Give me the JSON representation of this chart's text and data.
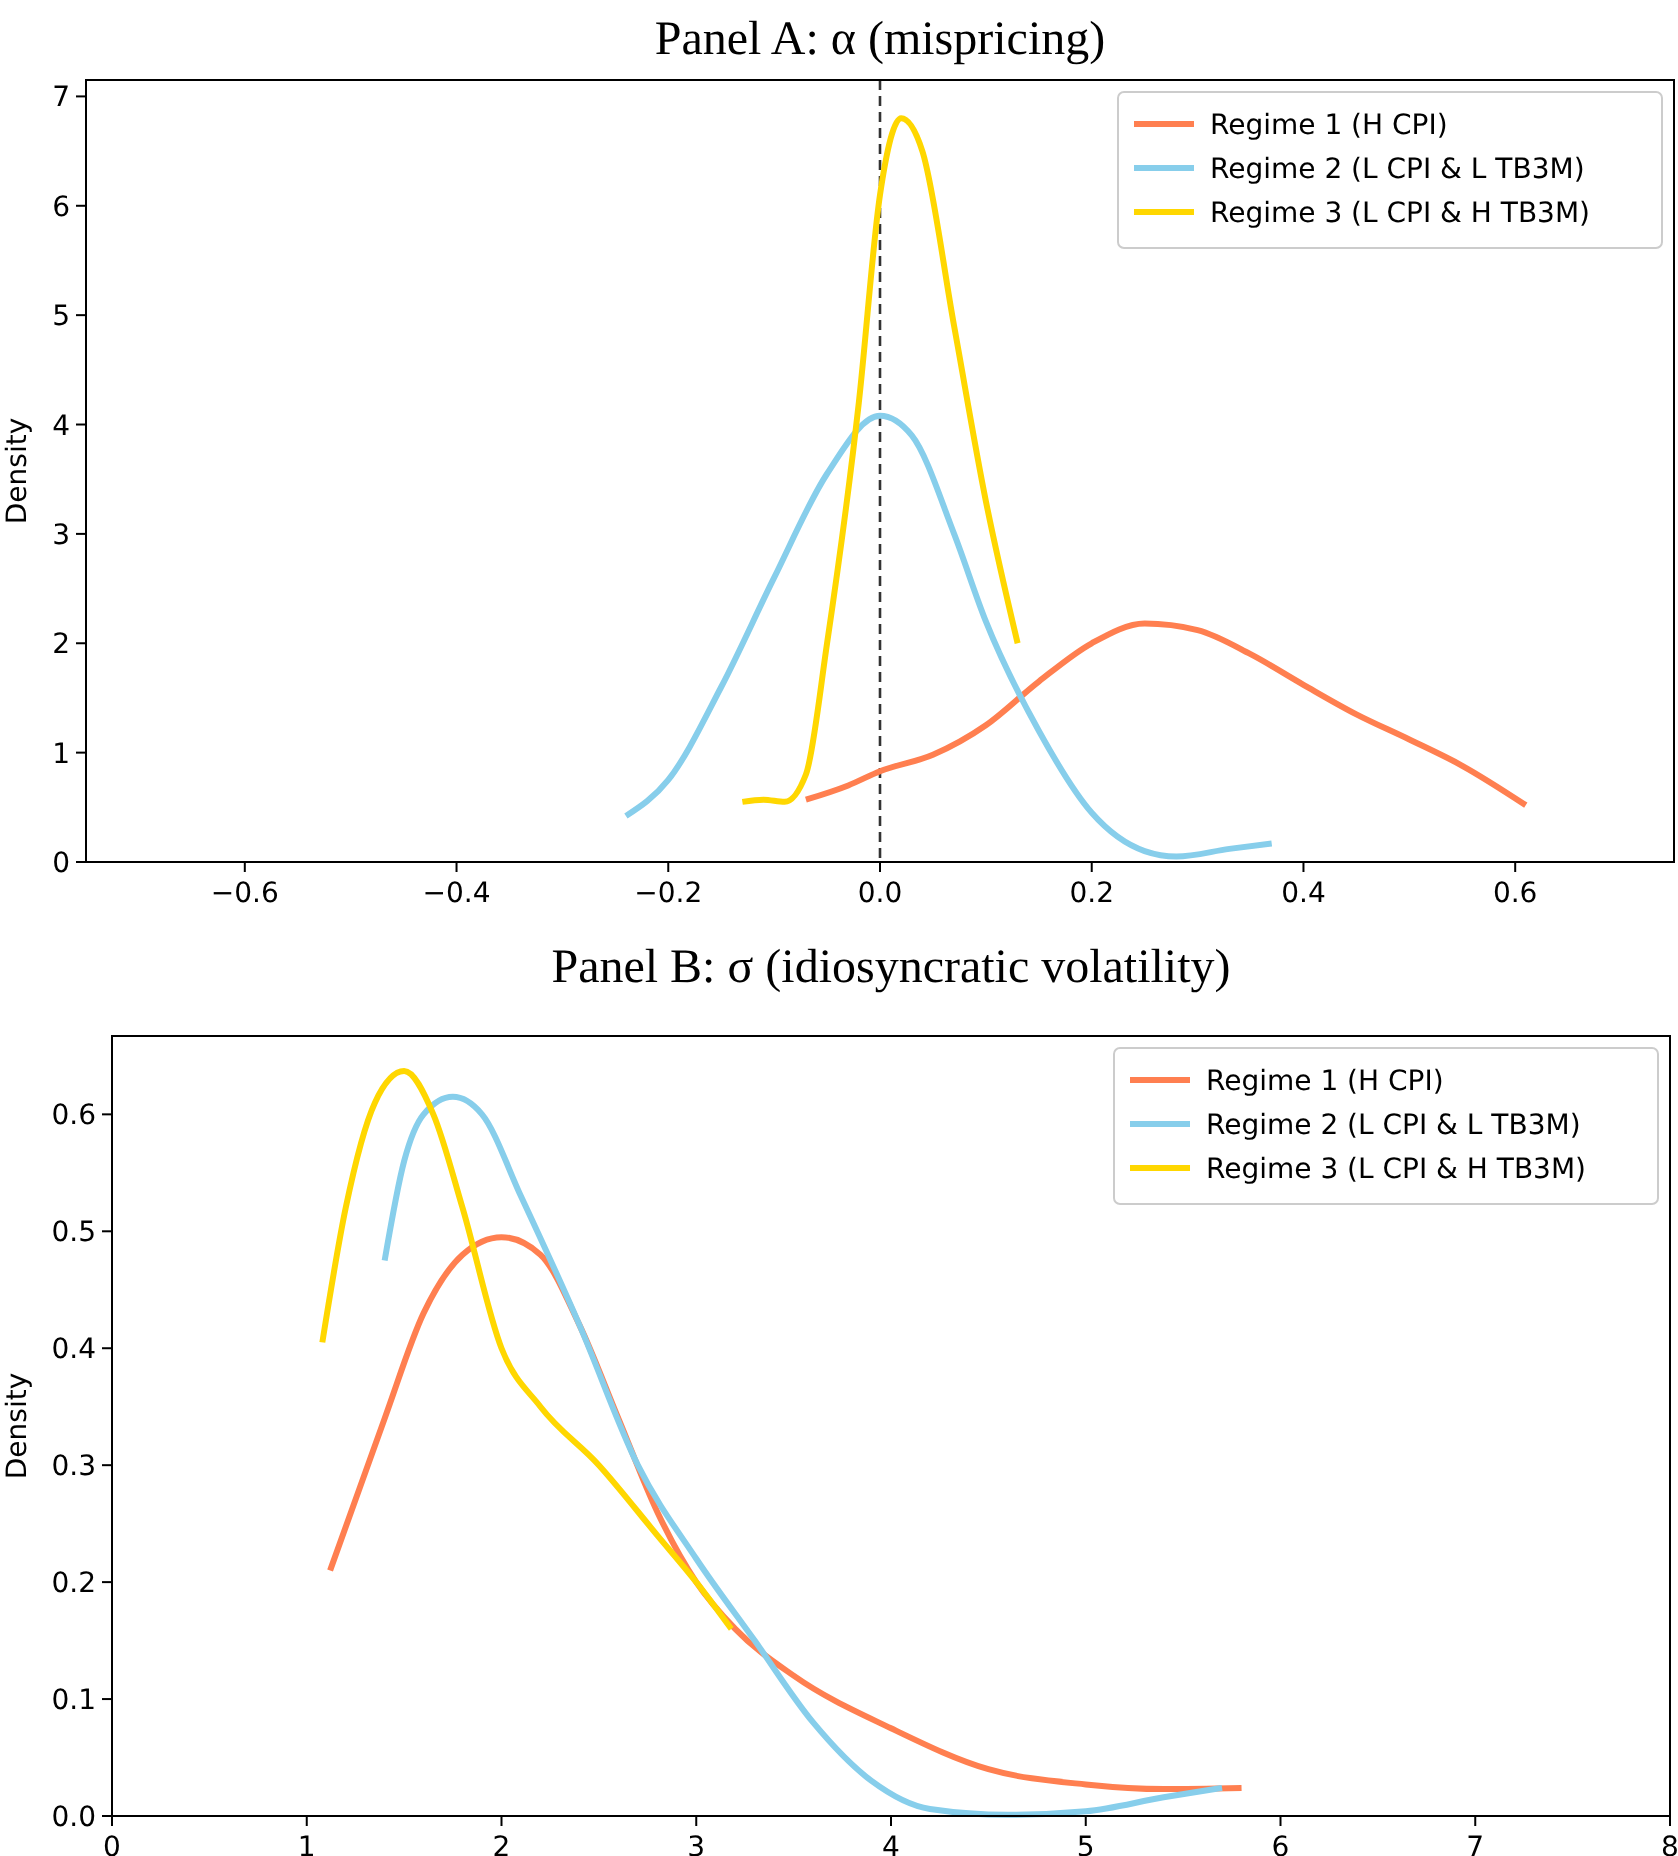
{
  "chart_data": [
    {
      "type": "line",
      "title": "Panel A: α (mispricing)",
      "ylabel": "Density",
      "xlim": [
        -0.75,
        0.75
      ],
      "xticks": [
        {
          "value": -0.6,
          "label": "−0.6"
        },
        {
          "value": -0.4,
          "label": "−0.4"
        },
        {
          "value": -0.2,
          "label": "−0.2"
        },
        {
          "value": 0,
          "label": "0.0"
        },
        {
          "value": 0.2,
          "label": "0.2"
        },
        {
          "value": 0.4,
          "label": "0.4"
        },
        {
          "value": 0.6,
          "label": "0.6"
        }
      ],
      "ylim": [
        0,
        7.15
      ],
      "yticks": [
        0,
        1,
        2,
        3,
        4,
        5,
        6,
        7
      ],
      "grid": false,
      "legend": "top right",
      "line_style": "solid",
      "ref_lines": [
        {
          "axis": "x",
          "value": 0,
          "color": "#333333",
          "line_style": "dashed"
        }
      ],
      "series": [
        {
          "name": "Regime 1 (H CPI)",
          "color": "#ff7f50",
          "x": [
            -0.07,
            -0.03,
            0,
            0.05,
            0.1,
            0.15,
            0.2,
            0.25,
            0.3,
            0.35,
            0.4,
            0.45,
            0.5,
            0.55,
            0.61
          ],
          "values": [
            0.57,
            0.7,
            0.83,
            0.98,
            1.25,
            1.65,
            2.0,
            2.18,
            2.12,
            1.9,
            1.62,
            1.35,
            1.12,
            0.88,
            0.52
          ]
        },
        {
          "name": "Regime 2 (L CPI & L TB3M)",
          "color": "#87ceeb",
          "x": [
            -0.24,
            -0.2,
            -0.15,
            -0.1,
            -0.05,
            0,
            0.03,
            0.07,
            0.1,
            0.15,
            0.2,
            0.25,
            0.28,
            0.33,
            0.37
          ],
          "values": [
            0.42,
            0.75,
            1.6,
            2.6,
            3.55,
            4.08,
            3.9,
            3.0,
            2.2,
            1.2,
            0.45,
            0.1,
            0.05,
            0.12,
            0.17
          ]
        },
        {
          "name": "Regime 3 (L CPI & H TB3M)",
          "color": "#ffd700",
          "x": [
            -0.13,
            -0.11,
            -0.09,
            -0.07,
            -0.05,
            -0.02,
            0,
            0.02,
            0.04,
            0.07,
            0.1,
            0.13
          ],
          "values": [
            0.55,
            0.57,
            0.55,
            0.8,
            2.0,
            4.2,
            6.1,
            6.8,
            6.5,
            4.9,
            3.3,
            2.0
          ]
        }
      ]
    },
    {
      "type": "line",
      "title": "Panel B: σ (idiosyncratic volatility)",
      "ylabel": "Density",
      "xlim": [
        0,
        8
      ],
      "xticks": [
        0,
        1,
        2,
        3,
        4,
        5,
        6,
        7,
        8
      ],
      "ylim": [
        0,
        0.667
      ],
      "yticks": [
        {
          "value": 0,
          "label": "0.0"
        },
        0.1,
        0.2,
        0.3,
        0.4,
        0.5,
        0.6
      ],
      "grid": false,
      "legend": "top right",
      "line_style": "solid",
      "series": [
        {
          "name": "Regime 1 (H CPI)",
          "color": "#ff7f50",
          "x": [
            1.12,
            1.4,
            1.6,
            1.8,
            2.0,
            2.2,
            2.4,
            2.6,
            2.8,
            3.0,
            3.2,
            3.5,
            4.0,
            4.5,
            5.0,
            5.4,
            5.8
          ],
          "values": [
            0.21,
            0.34,
            0.43,
            0.48,
            0.495,
            0.48,
            0.42,
            0.34,
            0.26,
            0.2,
            0.16,
            0.12,
            0.075,
            0.04,
            0.027,
            0.023,
            0.024
          ]
        },
        {
          "name": "Regime 2 (L CPI & L TB3M)",
          "color": "#87ceeb",
          "x": [
            1.4,
            1.5,
            1.6,
            1.75,
            1.9,
            2.1,
            2.4,
            2.7,
            3.0,
            3.3,
            3.6,
            3.9,
            4.2,
            4.6,
            5.0,
            5.4,
            5.7
          ],
          "values": [
            0.475,
            0.56,
            0.6,
            0.615,
            0.6,
            0.53,
            0.42,
            0.3,
            0.22,
            0.15,
            0.08,
            0.03,
            0.006,
            0.001,
            0.004,
            0.016,
            0.024
          ]
        },
        {
          "name": "Regime 3 (L CPI & H TB3M)",
          "color": "#ffd700",
          "x": [
            1.08,
            1.2,
            1.35,
            1.5,
            1.65,
            1.8,
            2.0,
            2.2,
            2.5,
            2.8,
            3.0,
            3.18
          ],
          "values": [
            0.405,
            0.52,
            0.61,
            0.637,
            0.6,
            0.52,
            0.4,
            0.35,
            0.3,
            0.24,
            0.2,
            0.16
          ]
        }
      ]
    }
  ]
}
